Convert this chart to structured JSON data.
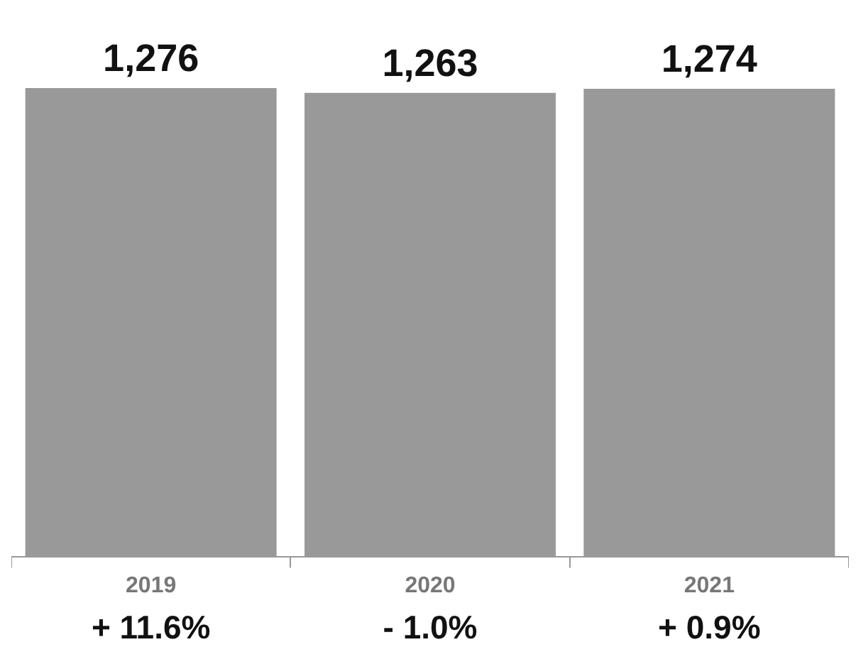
{
  "chart_data": {
    "type": "bar",
    "categories": [
      "2019",
      "2020",
      "2021"
    ],
    "values": [
      1276,
      1263,
      1274
    ],
    "color": "#999999",
    "value_labels": [
      "1,276",
      "1,263",
      "1,274"
    ],
    "annotations": [
      "+ 11.6%",
      "- 1.0%",
      "+ 0.9%"
    ]
  }
}
